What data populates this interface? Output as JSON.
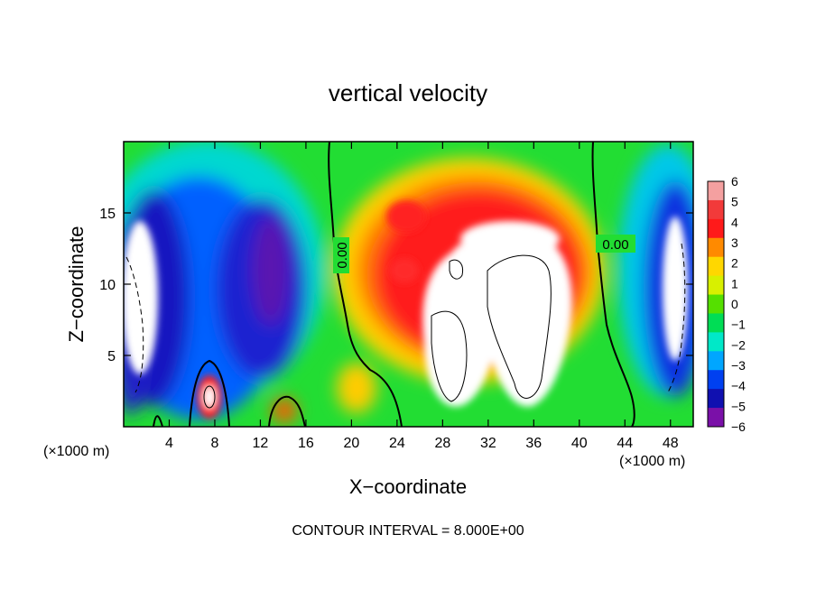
{
  "chart_data": {
    "type": "heatmap",
    "title": "vertical velocity",
    "xlabel": "X−coordinate",
    "ylabel": "Z−coordinate",
    "x_unit_left": "(×1000 m)",
    "x_unit_right": "(×1000 m)",
    "footer": "CONTOUR INTERVAL = 8.000E+00",
    "xlim": [
      0,
      50
    ],
    "ylim": [
      0,
      20
    ],
    "x_ticks": [
      4,
      8,
      12,
      16,
      20,
      24,
      28,
      32,
      36,
      40,
      44,
      48
    ],
    "x_tick_labels": [
      "4",
      "8",
      "12",
      "16",
      "20",
      "24",
      "28",
      "32",
      "36",
      "40",
      "44",
      "48"
    ],
    "y_ticks": [
      5,
      10,
      15
    ],
    "y_tick_labels": [
      "5",
      "10",
      "15"
    ],
    "contour_labels": [
      "0.00",
      "0.00"
    ],
    "colorbar": {
      "range": [
        -6,
        6
      ],
      "tick_values": [
        6,
        5,
        4,
        3,
        2,
        1,
        0,
        -1,
        -2,
        -3,
        -4,
        -5,
        -6
      ],
      "tick_labels": [
        "6",
        "5",
        "4",
        "3",
        "2",
        "1",
        "0",
        "−1",
        "−2",
        "−3",
        "−4",
        "−5",
        "−6"
      ],
      "colors": [
        "#f4a0a0",
        "#f23a3a",
        "#ff1a1a",
        "#ff8a00",
        "#ffd700",
        "#d8f000",
        "#55e000",
        "#00dd55",
        "#00e8c8",
        "#00a6ff",
        "#0040f0",
        "#1010b0",
        "#7a10a8"
      ]
    },
    "features": [
      {
        "kind": "updraft-core",
        "x": 34,
        "z": 8,
        "value": ">6"
      },
      {
        "kind": "updraft-core",
        "x": 28,
        "z": 8,
        "value": ">6"
      },
      {
        "kind": "downdraft",
        "x": 2,
        "z": 8,
        "value": "<-6"
      },
      {
        "kind": "downdraft",
        "x": 48,
        "z": 8,
        "value": "<-6"
      },
      {
        "kind": "downdraft",
        "x": 13,
        "z": 11,
        "value": "-5"
      }
    ]
  }
}
